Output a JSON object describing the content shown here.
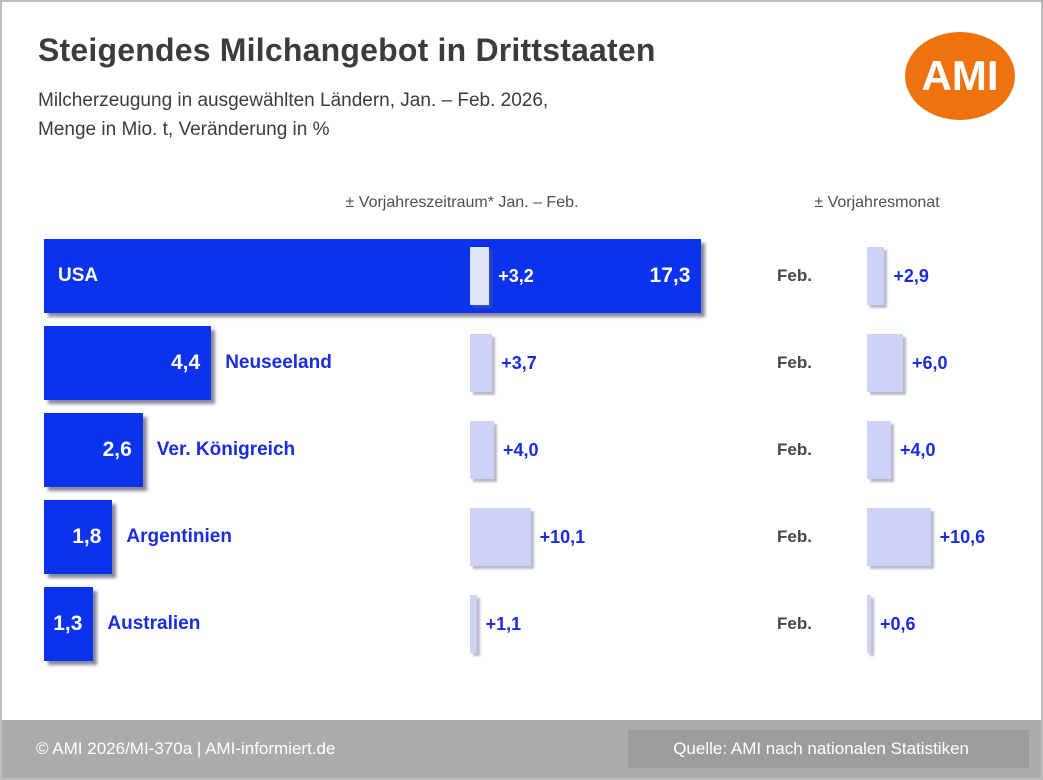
{
  "header": {
    "title": "Steigendes Milchangebot in Drittstaaten",
    "subtitle_line1": "Milcherzeugung in ausgewählten Ländern, Jan. – Feb. 2026,",
    "subtitle_line2": "Menge in Mio. t, Veränderung in %",
    "logo_text": "AMI",
    "logo_color": "#f0720e"
  },
  "columns": {
    "ytd_header": "± Vorjahreszeitraum* Jan. – Feb.",
    "month_header": "± Vorjahresmonat"
  },
  "chart_data": {
    "type": "bar",
    "title": "Steigendes Milchangebot in Drittstaaten",
    "subtitle": "Milcherzeugung in ausgewählten Ländern, Jan. – Feb. 2026, Menge in Mio. t, Veränderung in %",
    "orientation": "horizontal",
    "categories": [
      "USA",
      "Neuseeland",
      "Ver. Königreich",
      "Argentinien",
      "Australien"
    ],
    "series": [
      {
        "name": "Milcherzeugung Jan. – Feb. 2026 (Mio. t)",
        "values": [
          17.3,
          4.4,
          2.6,
          1.8,
          1.3
        ]
      },
      {
        "name": "± Vorjahreszeitraum Jan. – Feb. (%)",
        "values": [
          3.2,
          3.7,
          4.0,
          10.1,
          1.1
        ]
      },
      {
        "name": "± Vorjahresmonat Feb. (%)",
        "values": [
          2.9,
          6.0,
          4.0,
          10.6,
          0.6
        ]
      }
    ],
    "rows": [
      {
        "country": "USA",
        "volume_label": "17,3",
        "ytd_label": "+3,2",
        "month_period": "Feb.",
        "month_label": "+2,9"
      },
      {
        "country": "Neuseeland",
        "volume_label": "4,4",
        "ytd_label": "+3,7",
        "month_period": "Feb.",
        "month_label": "+6,0"
      },
      {
        "country": "Ver. Königreich",
        "volume_label": "2,6",
        "ytd_label": "+4,0",
        "month_period": "Feb.",
        "month_label": "+4,0"
      },
      {
        "country": "Argentinien",
        "volume_label": "1,8",
        "ytd_label": "+10,1",
        "month_period": "Feb.",
        "month_label": "+10,6"
      },
      {
        "country": "Australien",
        "volume_label": "1,3",
        "ytd_label": "+1,1",
        "month_period": "Feb.",
        "month_label": "+0,6"
      }
    ],
    "colors": {
      "volume_bar": "#0b33ee",
      "change_bar": "#ccd3f7",
      "change_bar_on_blue": "#e0e4f9",
      "value_text_blue": "#1a2ce0"
    },
    "legend_position": "none",
    "grid": false
  },
  "footer": {
    "left": "© AMI 2026/MI-370a | AMI-informiert.de",
    "right": "Quelle: AMI nach nationalen Statistiken"
  }
}
